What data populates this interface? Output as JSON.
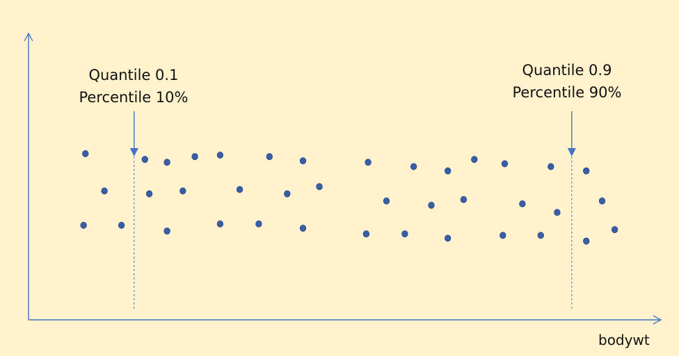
{
  "colors": {
    "background": "#fff2cc",
    "axis": "#4472c4",
    "point_fill": "#3a5ea6",
    "point_stroke": "#2a4a8a"
  },
  "labels": {
    "low_quantile": "Quantile 0.1",
    "low_percentile": "Percentile 10%",
    "high_quantile": "Quantile 0.9",
    "high_percentile": "Percentile 90%",
    "x_axis": "bodywt"
  },
  "chart_data": {
    "type": "scatter",
    "xlabel": "bodywt",
    "xlim": [
      0,
      100
    ],
    "ylim": [
      0,
      100
    ],
    "markers": [
      {
        "name": "Quantile 0.1 / Percentile 10%",
        "x": 16.7
      },
      {
        "name": "Quantile 0.9 / Percentile 90%",
        "x": 85.9
      }
    ],
    "points": [
      {
        "x": 9.0,
        "y": 58
      },
      {
        "x": 8.7,
        "y": 33
      },
      {
        "x": 12.0,
        "y": 45
      },
      {
        "x": 14.7,
        "y": 33
      },
      {
        "x": 18.4,
        "y": 56
      },
      {
        "x": 19.1,
        "y": 44
      },
      {
        "x": 21.9,
        "y": 55
      },
      {
        "x": 21.9,
        "y": 31
      },
      {
        "x": 24.4,
        "y": 45
      },
      {
        "x": 26.3,
        "y": 57
      },
      {
        "x": 30.3,
        "y": 57.5
      },
      {
        "x": 30.3,
        "y": 33.5
      },
      {
        "x": 33.4,
        "y": 45.5
      },
      {
        "x": 36.4,
        "y": 33.5
      },
      {
        "x": 38.1,
        "y": 57
      },
      {
        "x": 40.9,
        "y": 44
      },
      {
        "x": 43.4,
        "y": 55.5
      },
      {
        "x": 43.4,
        "y": 32
      },
      {
        "x": 46.0,
        "y": 46.5
      },
      {
        "x": 53.7,
        "y": 55
      },
      {
        "x": 53.4,
        "y": 30
      },
      {
        "x": 56.6,
        "y": 41.5
      },
      {
        "x": 59.5,
        "y": 30
      },
      {
        "x": 60.9,
        "y": 53.5
      },
      {
        "x": 63.7,
        "y": 40
      },
      {
        "x": 66.3,
        "y": 52
      },
      {
        "x": 66.3,
        "y": 28.5
      },
      {
        "x": 68.8,
        "y": 42
      },
      {
        "x": 70.5,
        "y": 56
      },
      {
        "x": 75.3,
        "y": 54.5
      },
      {
        "x": 75.0,
        "y": 29.5
      },
      {
        "x": 78.1,
        "y": 40.5
      },
      {
        "x": 81.0,
        "y": 29.5
      },
      {
        "x": 82.6,
        "y": 53.5
      },
      {
        "x": 83.6,
        "y": 37.5
      },
      {
        "x": 88.2,
        "y": 52
      },
      {
        "x": 88.2,
        "y": 27.5
      },
      {
        "x": 90.7,
        "y": 41.5
      },
      {
        "x": 92.7,
        "y": 31.5
      }
    ]
  }
}
